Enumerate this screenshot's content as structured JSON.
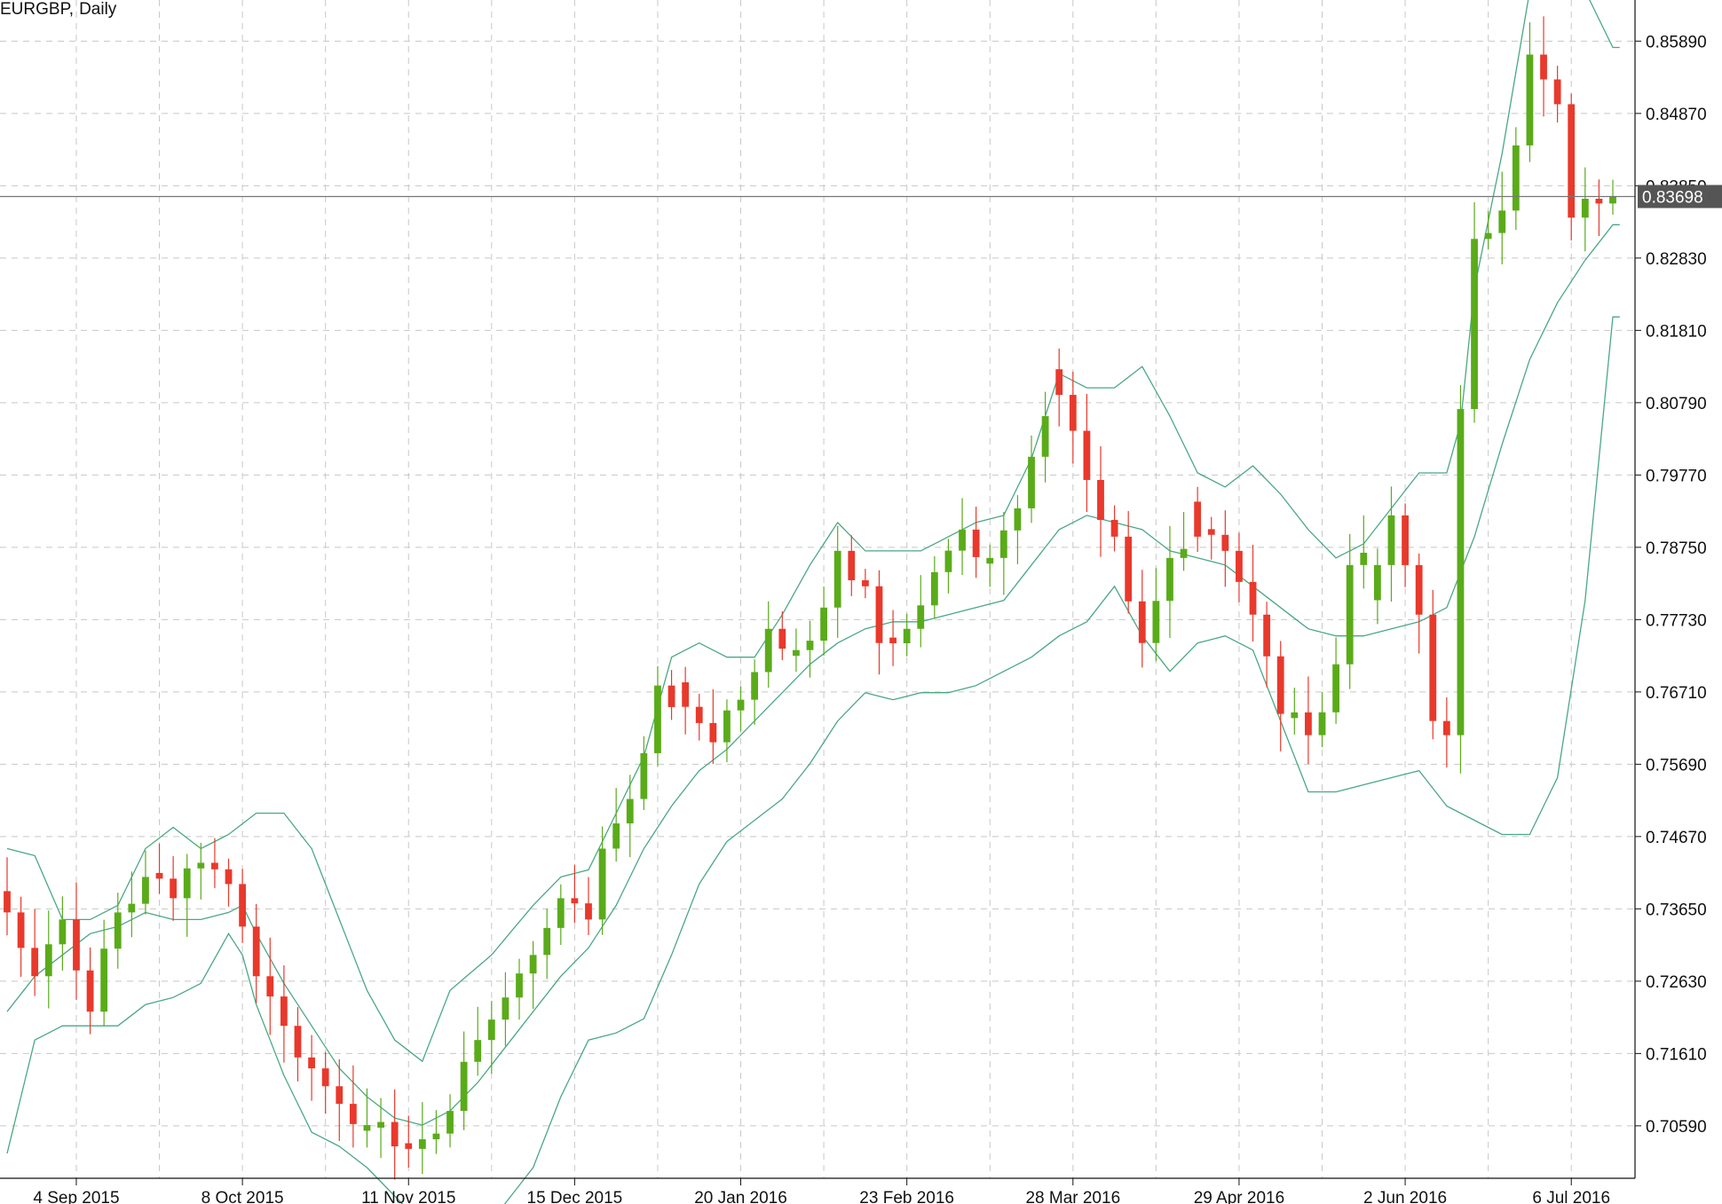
{
  "window": {
    "symbol": "EURGBP",
    "timeframe": "Daily"
  },
  "current_price": {
    "label": "0.83698",
    "value": 0.83698,
    "background": "#555555",
    "color": "#ffffff"
  },
  "colors": {
    "bull": "#5aab1a",
    "bear": "#e8392c",
    "band": "#4aa882",
    "grid": "#c8c8c8",
    "axis": "#111111",
    "price_line": "#777777"
  },
  "chart_data": {
    "type": "candlestick",
    "overlay": "bollinger bands (upper, middle, lower)",
    "yaxis": {
      "ticks": [
        "0.85890",
        "0.84870",
        "0.83850",
        "0.82830",
        "0.81810",
        "0.80790",
        "0.79770",
        "0.78750",
        "0.77730",
        "0.76710",
        "0.75690",
        "0.74670",
        "0.73650",
        "0.72630",
        "0.71610",
        "0.70590"
      ],
      "range": [
        0.6985,
        0.8647
      ],
      "side": "right"
    },
    "xaxis": {
      "ticks": [
        "4 Sep 2015",
        "8 Oct 2015",
        "11 Nov 2015",
        "15 Dec 2015",
        "20 Jan 2016",
        "23 Feb 2016",
        "28 Mar 2016",
        "29 Apr 2016",
        "2 Jun 2016",
        "6 Jul 2016"
      ],
      "tick_candle_index": [
        5,
        17,
        29,
        41,
        53,
        65,
        77,
        89,
        101,
        113
      ],
      "candle_count": 117
    },
    "grid": true,
    "candle_anchors": [
      [
        0,
        0.736,
        "d"
      ],
      [
        2,
        0.727,
        "d"
      ],
      [
        4,
        0.735,
        "u"
      ],
      [
        6,
        0.722,
        "d"
      ],
      [
        8,
        0.736,
        "u"
      ],
      [
        10,
        0.741,
        "u"
      ],
      [
        12,
        0.738,
        "d"
      ],
      [
        14,
        0.743,
        "u"
      ],
      [
        16,
        0.74,
        "d"
      ],
      [
        17,
        0.734,
        "d"
      ],
      [
        18,
        0.727,
        "d"
      ],
      [
        20,
        0.72,
        "d"
      ],
      [
        22,
        0.714,
        "d"
      ],
      [
        24,
        0.709,
        "d"
      ],
      [
        26,
        0.706,
        "d"
      ],
      [
        28,
        0.703,
        "d"
      ],
      [
        30,
        0.704,
        "u"
      ],
      [
        32,
        0.708,
        "u"
      ],
      [
        34,
        0.718,
        "u"
      ],
      [
        36,
        0.724,
        "u"
      ],
      [
        38,
        0.73,
        "u"
      ],
      [
        40,
        0.738,
        "u"
      ],
      [
        42,
        0.735,
        "d"
      ],
      [
        43,
        0.745,
        "u"
      ],
      [
        45,
        0.752,
        "u"
      ],
      [
        47,
        0.768,
        "u"
      ],
      [
        49,
        0.765,
        "d"
      ],
      [
        51,
        0.76,
        "d"
      ],
      [
        53,
        0.766,
        "u"
      ],
      [
        55,
        0.776,
        "u"
      ],
      [
        57,
        0.773,
        "d"
      ],
      [
        59,
        0.779,
        "u"
      ],
      [
        60,
        0.787,
        "u"
      ],
      [
        62,
        0.782,
        "d"
      ],
      [
        63,
        0.774,
        "d"
      ],
      [
        65,
        0.776,
        "u"
      ],
      [
        67,
        0.784,
        "u"
      ],
      [
        69,
        0.79,
        "u"
      ],
      [
        71,
        0.786,
        "d"
      ],
      [
        73,
        0.793,
        "u"
      ],
      [
        75,
        0.806,
        "u"
      ],
      [
        76,
        0.809,
        "d"
      ],
      [
        78,
        0.797,
        "d"
      ],
      [
        80,
        0.789,
        "d"
      ],
      [
        82,
        0.774,
        "d"
      ],
      [
        84,
        0.786,
        "u"
      ],
      [
        86,
        0.789,
        "d"
      ],
      [
        88,
        0.787,
        "d"
      ],
      [
        90,
        0.778,
        "d"
      ],
      [
        92,
        0.764,
        "d"
      ],
      [
        94,
        0.761,
        "d"
      ],
      [
        96,
        0.771,
        "u"
      ],
      [
        97,
        0.785,
        "u"
      ],
      [
        99,
        0.785,
        "u"
      ],
      [
        100,
        0.792,
        "u"
      ],
      [
        102,
        0.778,
        "d"
      ],
      [
        103,
        0.763,
        "d"
      ],
      [
        104,
        0.761,
        "d"
      ],
      [
        105,
        0.807,
        "u"
      ],
      [
        106,
        0.831,
        "u"
      ],
      [
        108,
        0.835,
        "u"
      ],
      [
        110,
        0.857,
        "u"
      ],
      [
        112,
        0.85,
        "d"
      ],
      [
        113,
        0.834,
        "d"
      ],
      [
        115,
        0.836,
        "d"
      ],
      [
        116,
        0.837,
        "u"
      ]
    ],
    "upper_band": [
      [
        0,
        0.745
      ],
      [
        2,
        0.744
      ],
      [
        4,
        0.735
      ],
      [
        6,
        0.735
      ],
      [
        8,
        0.737
      ],
      [
        10,
        0.745
      ],
      [
        12,
        0.748
      ],
      [
        14,
        0.745
      ],
      [
        16,
        0.747
      ],
      [
        18,
        0.75
      ],
      [
        20,
        0.75
      ],
      [
        22,
        0.745
      ],
      [
        24,
        0.735
      ],
      [
        26,
        0.725
      ],
      [
        28,
        0.718
      ],
      [
        30,
        0.715
      ],
      [
        32,
        0.725
      ],
      [
        35,
        0.73
      ],
      [
        38,
        0.737
      ],
      [
        40,
        0.741
      ],
      [
        42,
        0.742
      ],
      [
        44,
        0.75
      ],
      [
        46,
        0.758
      ],
      [
        48,
        0.772
      ],
      [
        50,
        0.774
      ],
      [
        52,
        0.772
      ],
      [
        54,
        0.772
      ],
      [
        56,
        0.778
      ],
      [
        58,
        0.785
      ],
      [
        60,
        0.791
      ],
      [
        62,
        0.787
      ],
      [
        64,
        0.787
      ],
      [
        66,
        0.787
      ],
      [
        68,
        0.789
      ],
      [
        70,
        0.791
      ],
      [
        72,
        0.792
      ],
      [
        74,
        0.8
      ],
      [
        76,
        0.812
      ],
      [
        78,
        0.81
      ],
      [
        80,
        0.81
      ],
      [
        82,
        0.813
      ],
      [
        84,
        0.806
      ],
      [
        86,
        0.798
      ],
      [
        88,
        0.796
      ],
      [
        90,
        0.799
      ],
      [
        92,
        0.795
      ],
      [
        94,
        0.79
      ],
      [
        96,
        0.786
      ],
      [
        98,
        0.788
      ],
      [
        100,
        0.793
      ],
      [
        102,
        0.798
      ],
      [
        104,
        0.798
      ],
      [
        105,
        0.805
      ],
      [
        106,
        0.824
      ],
      [
        108,
        0.843
      ],
      [
        110,
        0.866
      ],
      [
        112,
        0.867
      ],
      [
        114,
        0.866
      ],
      [
        116,
        0.858
      ]
    ],
    "middle_band": [
      [
        0,
        0.722
      ],
      [
        2,
        0.727
      ],
      [
        4,
        0.73
      ],
      [
        6,
        0.733
      ],
      [
        8,
        0.734
      ],
      [
        10,
        0.736
      ],
      [
        12,
        0.735
      ],
      [
        14,
        0.735
      ],
      [
        16,
        0.736
      ],
      [
        17,
        0.737
      ],
      [
        18,
        0.733
      ],
      [
        20,
        0.726
      ],
      [
        22,
        0.72
      ],
      [
        24,
        0.714
      ],
      [
        26,
        0.71
      ],
      [
        28,
        0.707
      ],
      [
        30,
        0.706
      ],
      [
        32,
        0.708
      ],
      [
        34,
        0.712
      ],
      [
        36,
        0.717
      ],
      [
        38,
        0.722
      ],
      [
        40,
        0.727
      ],
      [
        42,
        0.731
      ],
      [
        44,
        0.737
      ],
      [
        46,
        0.745
      ],
      [
        48,
        0.751
      ],
      [
        50,
        0.756
      ],
      [
        52,
        0.759
      ],
      [
        54,
        0.763
      ],
      [
        56,
        0.767
      ],
      [
        58,
        0.771
      ],
      [
        60,
        0.774
      ],
      [
        62,
        0.776
      ],
      [
        64,
        0.777
      ],
      [
        66,
        0.777
      ],
      [
        68,
        0.778
      ],
      [
        70,
        0.779
      ],
      [
        72,
        0.78
      ],
      [
        74,
        0.785
      ],
      [
        76,
        0.79
      ],
      [
        78,
        0.792
      ],
      [
        80,
        0.791
      ],
      [
        82,
        0.79
      ],
      [
        84,
        0.787
      ],
      [
        86,
        0.786
      ],
      [
        88,
        0.785
      ],
      [
        90,
        0.782
      ],
      [
        92,
        0.779
      ],
      [
        94,
        0.776
      ],
      [
        96,
        0.775
      ],
      [
        98,
        0.775
      ],
      [
        100,
        0.776
      ],
      [
        102,
        0.777
      ],
      [
        104,
        0.779
      ],
      [
        106,
        0.789
      ],
      [
        108,
        0.802
      ],
      [
        110,
        0.814
      ],
      [
        112,
        0.822
      ],
      [
        114,
        0.828
      ],
      [
        116,
        0.833
      ]
    ],
    "lower_band": [
      [
        0,
        0.702
      ],
      [
        2,
        0.718
      ],
      [
        4,
        0.72
      ],
      [
        6,
        0.72
      ],
      [
        8,
        0.72
      ],
      [
        10,
        0.723
      ],
      [
        12,
        0.724
      ],
      [
        14,
        0.726
      ],
      [
        16,
        0.733
      ],
      [
        17,
        0.73
      ],
      [
        18,
        0.723
      ],
      [
        20,
        0.713
      ],
      [
        22,
        0.705
      ],
      [
        24,
        0.703
      ],
      [
        26,
        0.7
      ],
      [
        28,
        0.696
      ],
      [
        30,
        0.692
      ],
      [
        32,
        0.688
      ],
      [
        34,
        0.69
      ],
      [
        36,
        0.695
      ],
      [
        38,
        0.7
      ],
      [
        40,
        0.71
      ],
      [
        42,
        0.718
      ],
      [
        44,
        0.719
      ],
      [
        46,
        0.721
      ],
      [
        48,
        0.73
      ],
      [
        50,
        0.74
      ],
      [
        52,
        0.746
      ],
      [
        54,
        0.749
      ],
      [
        56,
        0.752
      ],
      [
        58,
        0.757
      ],
      [
        60,
        0.763
      ],
      [
        62,
        0.767
      ],
      [
        64,
        0.766
      ],
      [
        66,
        0.767
      ],
      [
        68,
        0.767
      ],
      [
        70,
        0.768
      ],
      [
        72,
        0.77
      ],
      [
        74,
        0.772
      ],
      [
        76,
        0.775
      ],
      [
        78,
        0.777
      ],
      [
        80,
        0.782
      ],
      [
        82,
        0.775
      ],
      [
        84,
        0.77
      ],
      [
        86,
        0.774
      ],
      [
        88,
        0.775
      ],
      [
        90,
        0.773
      ],
      [
        92,
        0.763
      ],
      [
        94,
        0.753
      ],
      [
        96,
        0.753
      ],
      [
        98,
        0.754
      ],
      [
        100,
        0.755
      ],
      [
        102,
        0.756
      ],
      [
        104,
        0.751
      ],
      [
        106,
        0.749
      ],
      [
        108,
        0.747
      ],
      [
        110,
        0.747
      ],
      [
        112,
        0.755
      ],
      [
        114,
        0.78
      ],
      [
        116,
        0.82
      ]
    ]
  }
}
